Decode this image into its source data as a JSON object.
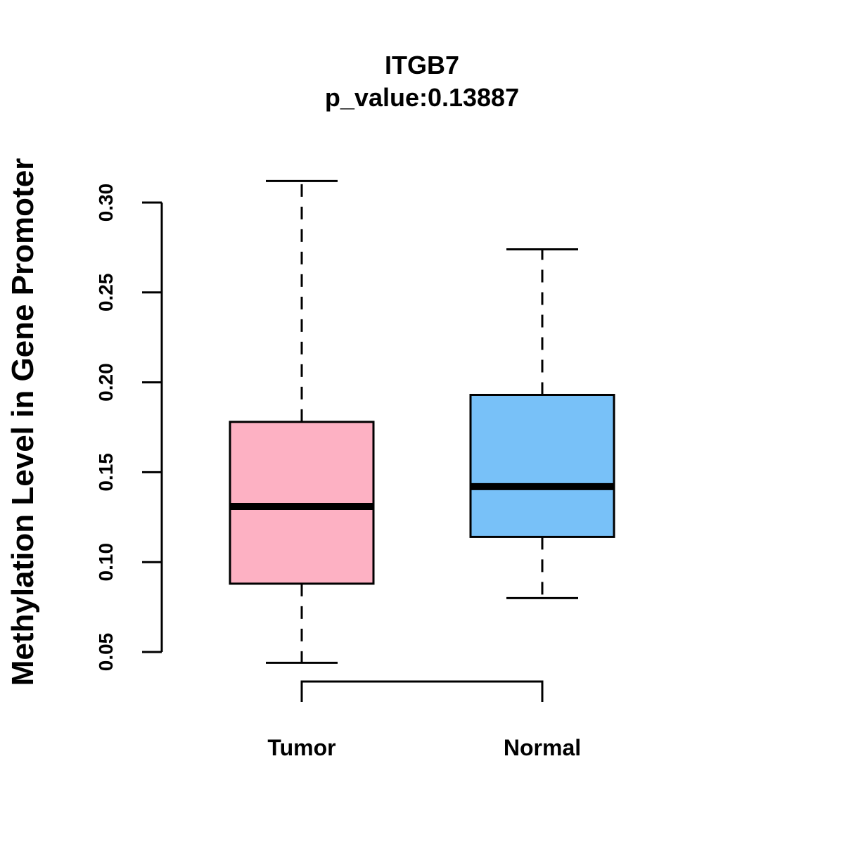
{
  "chart_data": {
    "type": "boxplot",
    "title": "ITGB7",
    "subtitle": "p_value:0.13887",
    "xlabel": "",
    "ylabel": "Methylation Level in Gene Promoter",
    "ylim": [
      0.05,
      0.3
    ],
    "yticks": [
      0.05,
      0.1,
      0.15,
      0.2,
      0.25,
      0.3
    ],
    "ytick_labels": [
      "0.05",
      "0.10",
      "0.15",
      "0.20",
      "0.25",
      "0.30"
    ],
    "grid": false,
    "categories": [
      "Tumor",
      "Normal"
    ],
    "boxes": [
      {
        "name": "Tumor",
        "min": 0.044,
        "q1": 0.088,
        "median": 0.131,
        "q3": 0.178,
        "max": 0.312,
        "color": "#FDB1C3"
      },
      {
        "name": "Normal",
        "min": 0.08,
        "q1": 0.114,
        "median": 0.142,
        "q3": 0.193,
        "max": 0.274,
        "color": "#78C1F8"
      }
    ],
    "significance_bracket": {
      "from": "Tumor",
      "to": "Normal",
      "label": ""
    }
  }
}
